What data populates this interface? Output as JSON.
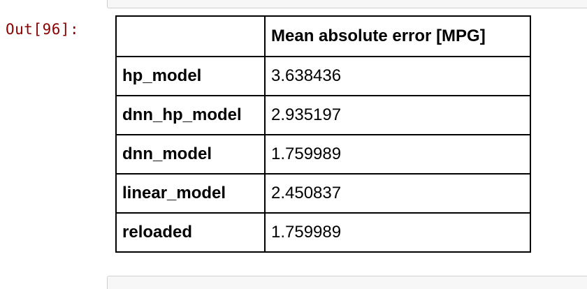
{
  "output": {
    "prompt": "Out[96]:"
  },
  "table": {
    "index_header": "",
    "columns": [
      "Mean absolute error [MPG]"
    ],
    "rows": [
      {
        "index": "hp_model",
        "value": "3.638436"
      },
      {
        "index": "dnn_hp_model",
        "value": "2.935197"
      },
      {
        "index": "dnn_model",
        "value": "1.759989"
      },
      {
        "index": "linear_model",
        "value": "2.450837"
      },
      {
        "index": "reloaded",
        "value": "1.759989"
      }
    ]
  }
}
